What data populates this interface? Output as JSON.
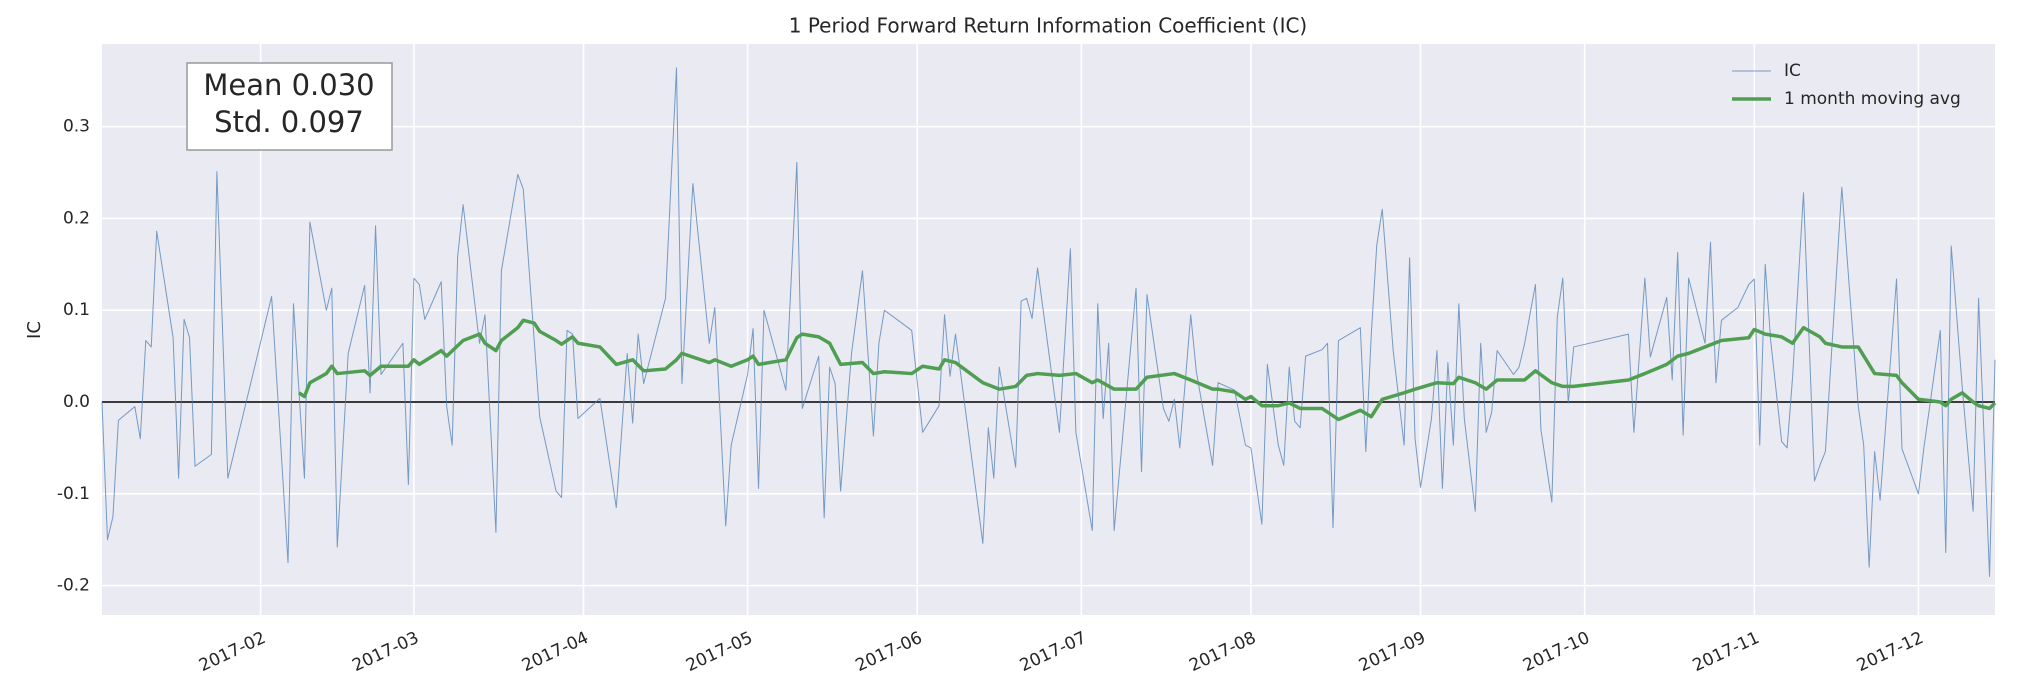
{
  "chart_data": {
    "type": "line",
    "title": "1 Period Forward Return Information Coefficient (IC)",
    "y_label": "IC",
    "annotation": [
      "Mean 0.030",
      "Std. 0.097"
    ],
    "xlim": [
      2,
      348
    ],
    "xticks": [
      {
        "value": 31,
        "label": "2017-02"
      },
      {
        "value": 59,
        "label": "2017-03"
      },
      {
        "value": 90,
        "label": "2017-04"
      },
      {
        "value": 120,
        "label": "2017-05"
      },
      {
        "value": 151,
        "label": "2017-06"
      },
      {
        "value": 181,
        "label": "2017-07"
      },
      {
        "value": 212,
        "label": "2017-08"
      },
      {
        "value": 243,
        "label": "2017-09"
      },
      {
        "value": 273,
        "label": "2017-10"
      },
      {
        "value": 304,
        "label": "2017-11"
      },
      {
        "value": 334,
        "label": "2017-12"
      }
    ],
    "ylim": [
      -0.232,
      0.39
    ],
    "yticks": [
      {
        "value": -0.2,
        "label": "-0.2"
      },
      {
        "value": -0.1,
        "label": "-0.1"
      },
      {
        "value": 0,
        "label": "0.0"
      },
      {
        "value": 0.1,
        "label": "0.1"
      },
      {
        "value": 0.2,
        "label": "0.2"
      },
      {
        "value": 0.3,
        "label": "0.3"
      }
    ],
    "grid": true,
    "hline": 0,
    "legend": "upper right",
    "series": [
      {
        "name": "IC",
        "color": "#4c7fb5",
        "width": 1,
        "x": [
          2,
          3,
          4,
          5,
          8,
          9,
          10,
          11,
          12,
          15,
          16,
          17,
          18,
          19,
          22,
          23,
          25,
          33,
          36,
          37,
          39,
          40,
          43,
          44,
          45,
          47,
          50,
          51,
          52,
          53,
          57,
          58,
          59,
          60,
          61,
          64,
          65,
          66,
          67,
          68,
          71,
          72,
          74,
          75,
          78,
          79,
          81,
          82,
          85,
          86,
          87,
          88,
          89,
          93,
          96,
          98,
          99,
          100,
          101,
          105,
          107,
          108,
          110,
          113,
          114,
          116,
          117,
          120,
          121,
          122,
          123,
          127,
          129,
          130,
          133,
          134,
          135,
          136,
          137,
          139,
          141,
          143,
          144,
          145,
          150,
          152,
          155,
          156,
          157,
          158,
          163,
          164,
          165,
          166,
          169,
          170,
          171,
          172,
          173,
          177,
          179,
          180,
          183,
          184,
          185,
          186,
          187,
          191,
          192,
          193,
          196,
          197,
          198,
          199,
          201,
          202,
          205,
          206,
          209,
          211,
          212,
          214,
          215,
          217,
          218,
          219,
          220,
          221,
          222,
          225,
          226,
          227,
          228,
          232,
          233,
          234,
          235,
          236,
          238,
          240,
          241,
          242,
          243,
          245,
          246,
          247,
          248,
          249,
          250,
          251,
          253,
          254,
          255,
          256,
          257,
          260,
          261,
          262,
          264,
          265,
          267,
          268,
          269,
          270,
          271,
          281,
          282,
          284,
          285,
          288,
          289,
          290,
          291,
          292,
          295,
          296,
          297,
          298,
          301,
          303,
          304,
          305,
          306,
          307,
          309,
          310,
          311,
          313,
          315,
          316,
          317,
          320,
          323,
          324,
          325,
          326,
          327,
          330,
          331,
          334,
          335,
          338,
          339,
          340,
          342,
          344,
          345,
          347,
          348
        ],
        "values": [
          0.0,
          -0.15,
          -0.125,
          -0.02,
          -0.005,
          -0.04,
          0.067,
          0.06,
          0.186,
          0.07,
          -0.083,
          0.09,
          0.07,
          -0.07,
          -0.057,
          0.251,
          -0.083,
          0.115,
          -0.175,
          0.107,
          -0.083,
          0.196,
          0.1,
          0.124,
          -0.158,
          0.053,
          0.127,
          0.01,
          0.192,
          0.03,
          0.064,
          -0.09,
          0.135,
          0.128,
          0.09,
          0.131,
          -0.005,
          -0.047,
          0.158,
          0.215,
          0.064,
          0.095,
          -0.142,
          0.143,
          0.248,
          0.232,
          0.067,
          -0.016,
          -0.097,
          -0.104,
          0.078,
          0.074,
          -0.018,
          0.004,
          -0.115,
          0.053,
          -0.023,
          0.074,
          0.02,
          0.113,
          0.364,
          0.02,
          0.238,
          0.064,
          0.103,
          -0.135,
          -0.047,
          0.03,
          0.08,
          -0.094,
          0.1,
          0.013,
          0.261,
          -0.007,
          0.05,
          -0.126,
          0.038,
          0.02,
          -0.097,
          0.053,
          0.143,
          -0.037,
          0.064,
          0.1,
          0.078,
          -0.033,
          -0.004,
          0.095,
          0.028,
          0.074,
          -0.154,
          -0.028,
          -0.083,
          0.038,
          -0.071,
          0.11,
          0.113,
          0.091,
          0.146,
          -0.033,
          0.167,
          -0.033,
          -0.14,
          0.107,
          -0.018,
          0.064,
          -0.14,
          0.124,
          -0.076,
          0.117,
          -0.007,
          -0.021,
          0.003,
          -0.05,
          0.095,
          0.034,
          -0.069,
          0.021,
          0.013,
          -0.047,
          -0.05,
          -0.133,
          0.041,
          -0.047,
          -0.069,
          0.038,
          -0.021,
          -0.028,
          0.05,
          0.057,
          0.064,
          -0.137,
          0.067,
          0.081,
          -0.054,
          0.074,
          0.171,
          0.21,
          0.056,
          -0.047,
          0.157,
          -0.04,
          -0.093,
          -0.018,
          0.056,
          -0.094,
          0.043,
          -0.047,
          0.107,
          -0.018,
          -0.119,
          0.064,
          -0.033,
          -0.011,
          0.056,
          0.03,
          0.038,
          0.063,
          0.128,
          -0.03,
          -0.109,
          0.093,
          0.135,
          -0.001,
          0.06,
          0.074,
          -0.033,
          0.135,
          0.049,
          0.114,
          0.024,
          0.163,
          -0.036,
          0.135,
          0.064,
          0.174,
          0.021,
          0.089,
          0.103,
          0.128,
          0.134,
          -0.047,
          0.15,
          0.067,
          -0.043,
          -0.05,
          0.027,
          0.228,
          -0.086,
          -0.069,
          -0.054,
          0.234,
          -0.004,
          -0.047,
          -0.18,
          -0.054,
          -0.107,
          0.134,
          -0.051,
          -0.1,
          -0.05,
          0.078,
          -0.164,
          0.17,
          0.017,
          -0.119,
          0.113,
          -0.19,
          0.046
        ]
      },
      {
        "name": "1 month moving avg",
        "color": "#4f9e52",
        "width": 3.5,
        "x": [
          38,
          39,
          40,
          43,
          44,
          45,
          50,
          51,
          53,
          58,
          59,
          60,
          64,
          65,
          68,
          71,
          72,
          74,
          75,
          78,
          79,
          81,
          82,
          85,
          86,
          88,
          89,
          93,
          96,
          99,
          101,
          105,
          107,
          108,
          113,
          114,
          117,
          120,
          121,
          122,
          127,
          129,
          130,
          133,
          135,
          137,
          141,
          143,
          145,
          150,
          152,
          155,
          156,
          158,
          163,
          166,
          169,
          171,
          173,
          177,
          180,
          183,
          184,
          187,
          191,
          193,
          198,
          201,
          205,
          206,
          209,
          211,
          212,
          214,
          217,
          219,
          221,
          225,
          228,
          232,
          234,
          236,
          240,
          242,
          246,
          249,
          250,
          253,
          255,
          257,
          262,
          264,
          267,
          269,
          271,
          281,
          284,
          288,
          290,
          292,
          295,
          298,
          303,
          304,
          306,
          309,
          311,
          313,
          316,
          317,
          320,
          323,
          326,
          330,
          331,
          334,
          338,
          339,
          340,
          342,
          344,
          345,
          347,
          348
        ],
        "values": [
          0.01,
          0.006,
          0.021,
          0.031,
          0.039,
          0.031,
          0.034,
          0.029,
          0.039,
          0.039,
          0.046,
          0.041,
          0.056,
          0.05,
          0.067,
          0.074,
          0.064,
          0.056,
          0.067,
          0.081,
          0.089,
          0.086,
          0.077,
          0.067,
          0.063,
          0.071,
          0.064,
          0.06,
          0.041,
          0.046,
          0.034,
          0.036,
          0.046,
          0.053,
          0.043,
          0.046,
          0.039,
          0.046,
          0.05,
          0.041,
          0.046,
          0.07,
          0.074,
          0.071,
          0.064,
          0.041,
          0.043,
          0.031,
          0.033,
          0.031,
          0.039,
          0.036,
          0.046,
          0.043,
          0.021,
          0.014,
          0.017,
          0.029,
          0.031,
          0.029,
          0.031,
          0.021,
          0.024,
          0.014,
          0.014,
          0.027,
          0.031,
          0.024,
          0.014,
          0.014,
          0.011,
          0.003,
          0.006,
          -0.004,
          -0.004,
          -0.001,
          -0.007,
          -0.007,
          -0.019,
          -0.009,
          -0.016,
          0.003,
          0.01,
          0.014,
          0.021,
          0.02,
          0.027,
          0.021,
          0.014,
          0.024,
          0.024,
          0.034,
          0.021,
          0.017,
          0.017,
          0.024,
          0.031,
          0.041,
          0.05,
          0.053,
          0.06,
          0.067,
          0.07,
          0.079,
          0.074,
          0.071,
          0.064,
          0.081,
          0.071,
          0.064,
          0.06,
          0.06,
          0.031,
          0.029,
          0.021,
          0.003,
          0.0,
          -0.004,
          0.003,
          0.01,
          0.0,
          -0.004,
          -0.007,
          -0.001
        ]
      }
    ]
  }
}
